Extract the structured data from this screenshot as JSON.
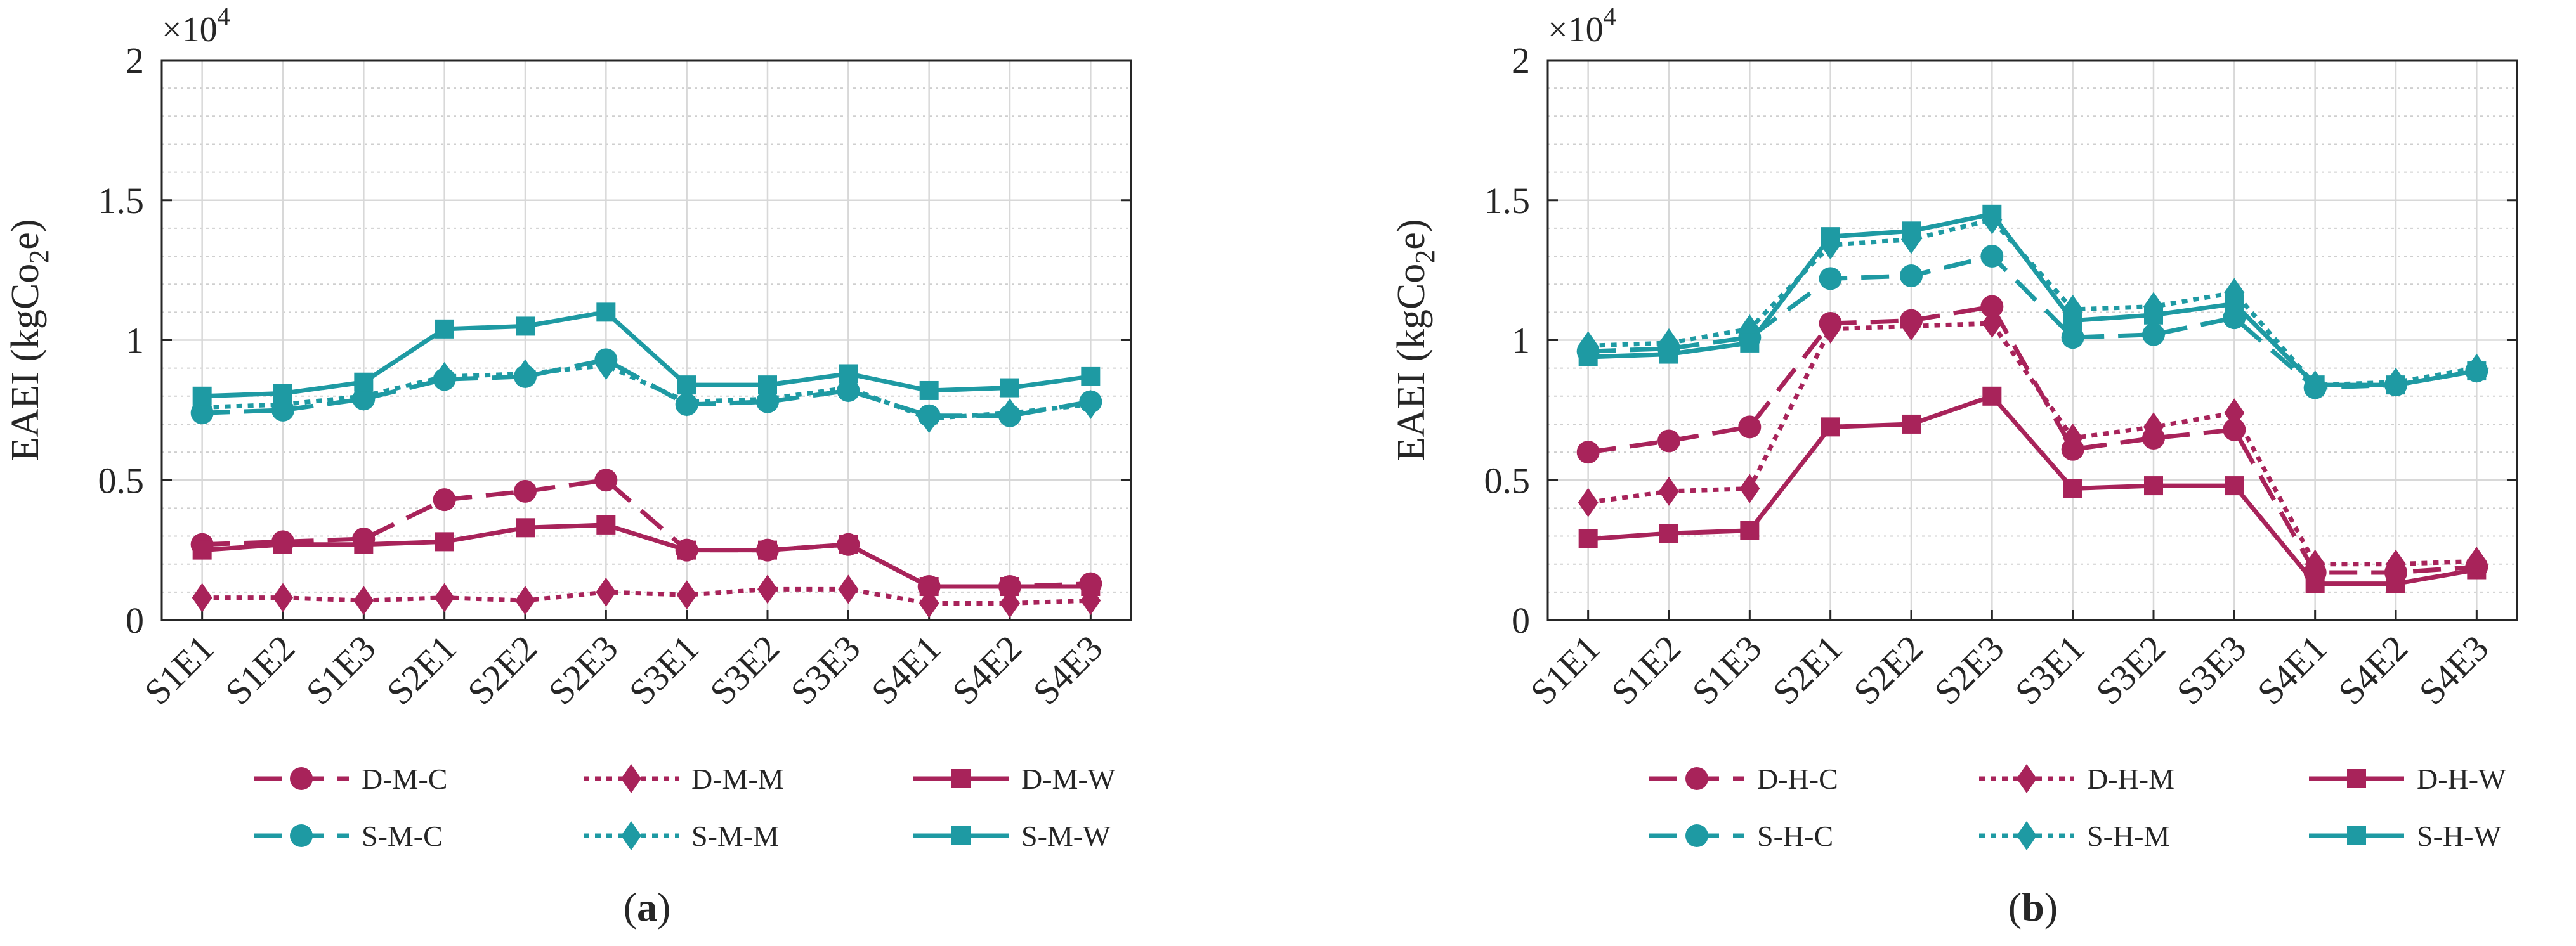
{
  "chart_data": [
    {
      "type": "line",
      "panel_label": "(a)",
      "categories": [
        "S1E1",
        "S1E2",
        "S1E3",
        "S2E1",
        "S2E2",
        "S2E3",
        "S3E1",
        "S3E2",
        "S3E3",
        "S4E1",
        "S4E2",
        "S4E3"
      ],
      "ylabel": "EAEI (kgCo2e)",
      "ylabel_main": "EAEI (kgCo",
      "ylabel_sub": "2",
      "ylabel_end": "e)",
      "y_scale_base": "×10",
      "y_scale_exp": "4",
      "ylim": [
        0,
        2
      ],
      "yticks": [
        0,
        0.5,
        1,
        1.5,
        2
      ],
      "ytick_labels": [
        "0",
        "0.5",
        "1",
        "1.5",
        "2"
      ],
      "grid": true,
      "legend_position": "bottom",
      "series": [
        {
          "name": "D-M-C",
          "color": "#A8235A",
          "dash": "dashed",
          "marker": "circle",
          "values": [
            0.27,
            0.28,
            0.29,
            0.43,
            0.46,
            0.5,
            0.25,
            0.25,
            0.27,
            0.12,
            0.12,
            0.13
          ]
        },
        {
          "name": "D-M-M",
          "color": "#A8235A",
          "dash": "dotted",
          "marker": "diamond",
          "values": [
            0.08,
            0.08,
            0.07,
            0.08,
            0.07,
            0.1,
            0.09,
            0.11,
            0.11,
            0.06,
            0.06,
            0.07
          ]
        },
        {
          "name": "D-M-W",
          "color": "#A8235A",
          "dash": "solid",
          "marker": "square",
          "values": [
            0.25,
            0.27,
            0.27,
            0.28,
            0.33,
            0.34,
            0.25,
            0.25,
            0.27,
            0.12,
            0.12,
            0.12
          ]
        },
        {
          "name": "S-M-C",
          "color": "#1E9AA3",
          "dash": "dashed",
          "marker": "circle",
          "values": [
            0.74,
            0.75,
            0.79,
            0.86,
            0.87,
            0.93,
            0.77,
            0.78,
            0.82,
            0.73,
            0.73,
            0.78
          ]
        },
        {
          "name": "S-M-M",
          "color": "#1E9AA3",
          "dash": "dotted",
          "marker": "diamond",
          "values": [
            0.76,
            0.77,
            0.8,
            0.87,
            0.88,
            0.91,
            0.78,
            0.79,
            0.83,
            0.72,
            0.74,
            0.77
          ]
        },
        {
          "name": "S-M-W",
          "color": "#1E9AA3",
          "dash": "solid",
          "marker": "square",
          "values": [
            0.8,
            0.81,
            0.85,
            1.04,
            1.05,
            1.1,
            0.84,
            0.84,
            0.88,
            0.82,
            0.83,
            0.87
          ]
        }
      ]
    },
    {
      "type": "line",
      "panel_label": "(b)",
      "categories": [
        "S1E1",
        "S1E2",
        "S1E3",
        "S2E1",
        "S2E2",
        "S2E3",
        "S3E1",
        "S3E2",
        "S3E3",
        "S4E1",
        "S4E2",
        "S4E3"
      ],
      "ylabel": "EAEI (kgCo2e)",
      "ylabel_main": "EAEI (kgCo",
      "ylabel_sub": "2",
      "ylabel_end": "e)",
      "y_scale_base": "×10",
      "y_scale_exp": "4",
      "ylim": [
        0,
        2
      ],
      "yticks": [
        0,
        0.5,
        1,
        1.5,
        2
      ],
      "ytick_labels": [
        "0",
        "0.5",
        "1",
        "1.5",
        "2"
      ],
      "grid": true,
      "legend_position": "bottom",
      "series": [
        {
          "name": "D-H-C",
          "color": "#A8235A",
          "dash": "dashed",
          "marker": "circle",
          "values": [
            0.6,
            0.64,
            0.69,
            1.06,
            1.07,
            1.12,
            0.61,
            0.65,
            0.68,
            0.17,
            0.17,
            0.19
          ]
        },
        {
          "name": "D-H-M",
          "color": "#A8235A",
          "dash": "dotted",
          "marker": "diamond",
          "values": [
            0.42,
            0.46,
            0.47,
            1.04,
            1.05,
            1.06,
            0.65,
            0.69,
            0.74,
            0.2,
            0.2,
            0.21
          ]
        },
        {
          "name": "D-H-W",
          "color": "#A8235A",
          "dash": "solid",
          "marker": "square",
          "values": [
            0.29,
            0.31,
            0.32,
            0.69,
            0.7,
            0.8,
            0.47,
            0.48,
            0.48,
            0.13,
            0.13,
            0.18
          ]
        },
        {
          "name": "S-H-C",
          "color": "#1E9AA3",
          "dash": "dashed",
          "marker": "circle",
          "values": [
            0.96,
            0.97,
            1.01,
            1.22,
            1.23,
            1.3,
            1.01,
            1.02,
            1.08,
            0.83,
            0.84,
            0.89
          ]
        },
        {
          "name": "S-H-M",
          "color": "#1E9AA3",
          "dash": "dotted",
          "marker": "diamond",
          "values": [
            0.98,
            0.99,
            1.04,
            1.34,
            1.36,
            1.43,
            1.11,
            1.12,
            1.17,
            0.84,
            0.85,
            0.9
          ]
        },
        {
          "name": "S-H-W",
          "color": "#1E9AA3",
          "dash": "solid",
          "marker": "square",
          "values": [
            0.94,
            0.95,
            0.99,
            1.37,
            1.39,
            1.45,
            1.07,
            1.09,
            1.13,
            0.84,
            0.84,
            0.89
          ]
        }
      ]
    }
  ]
}
